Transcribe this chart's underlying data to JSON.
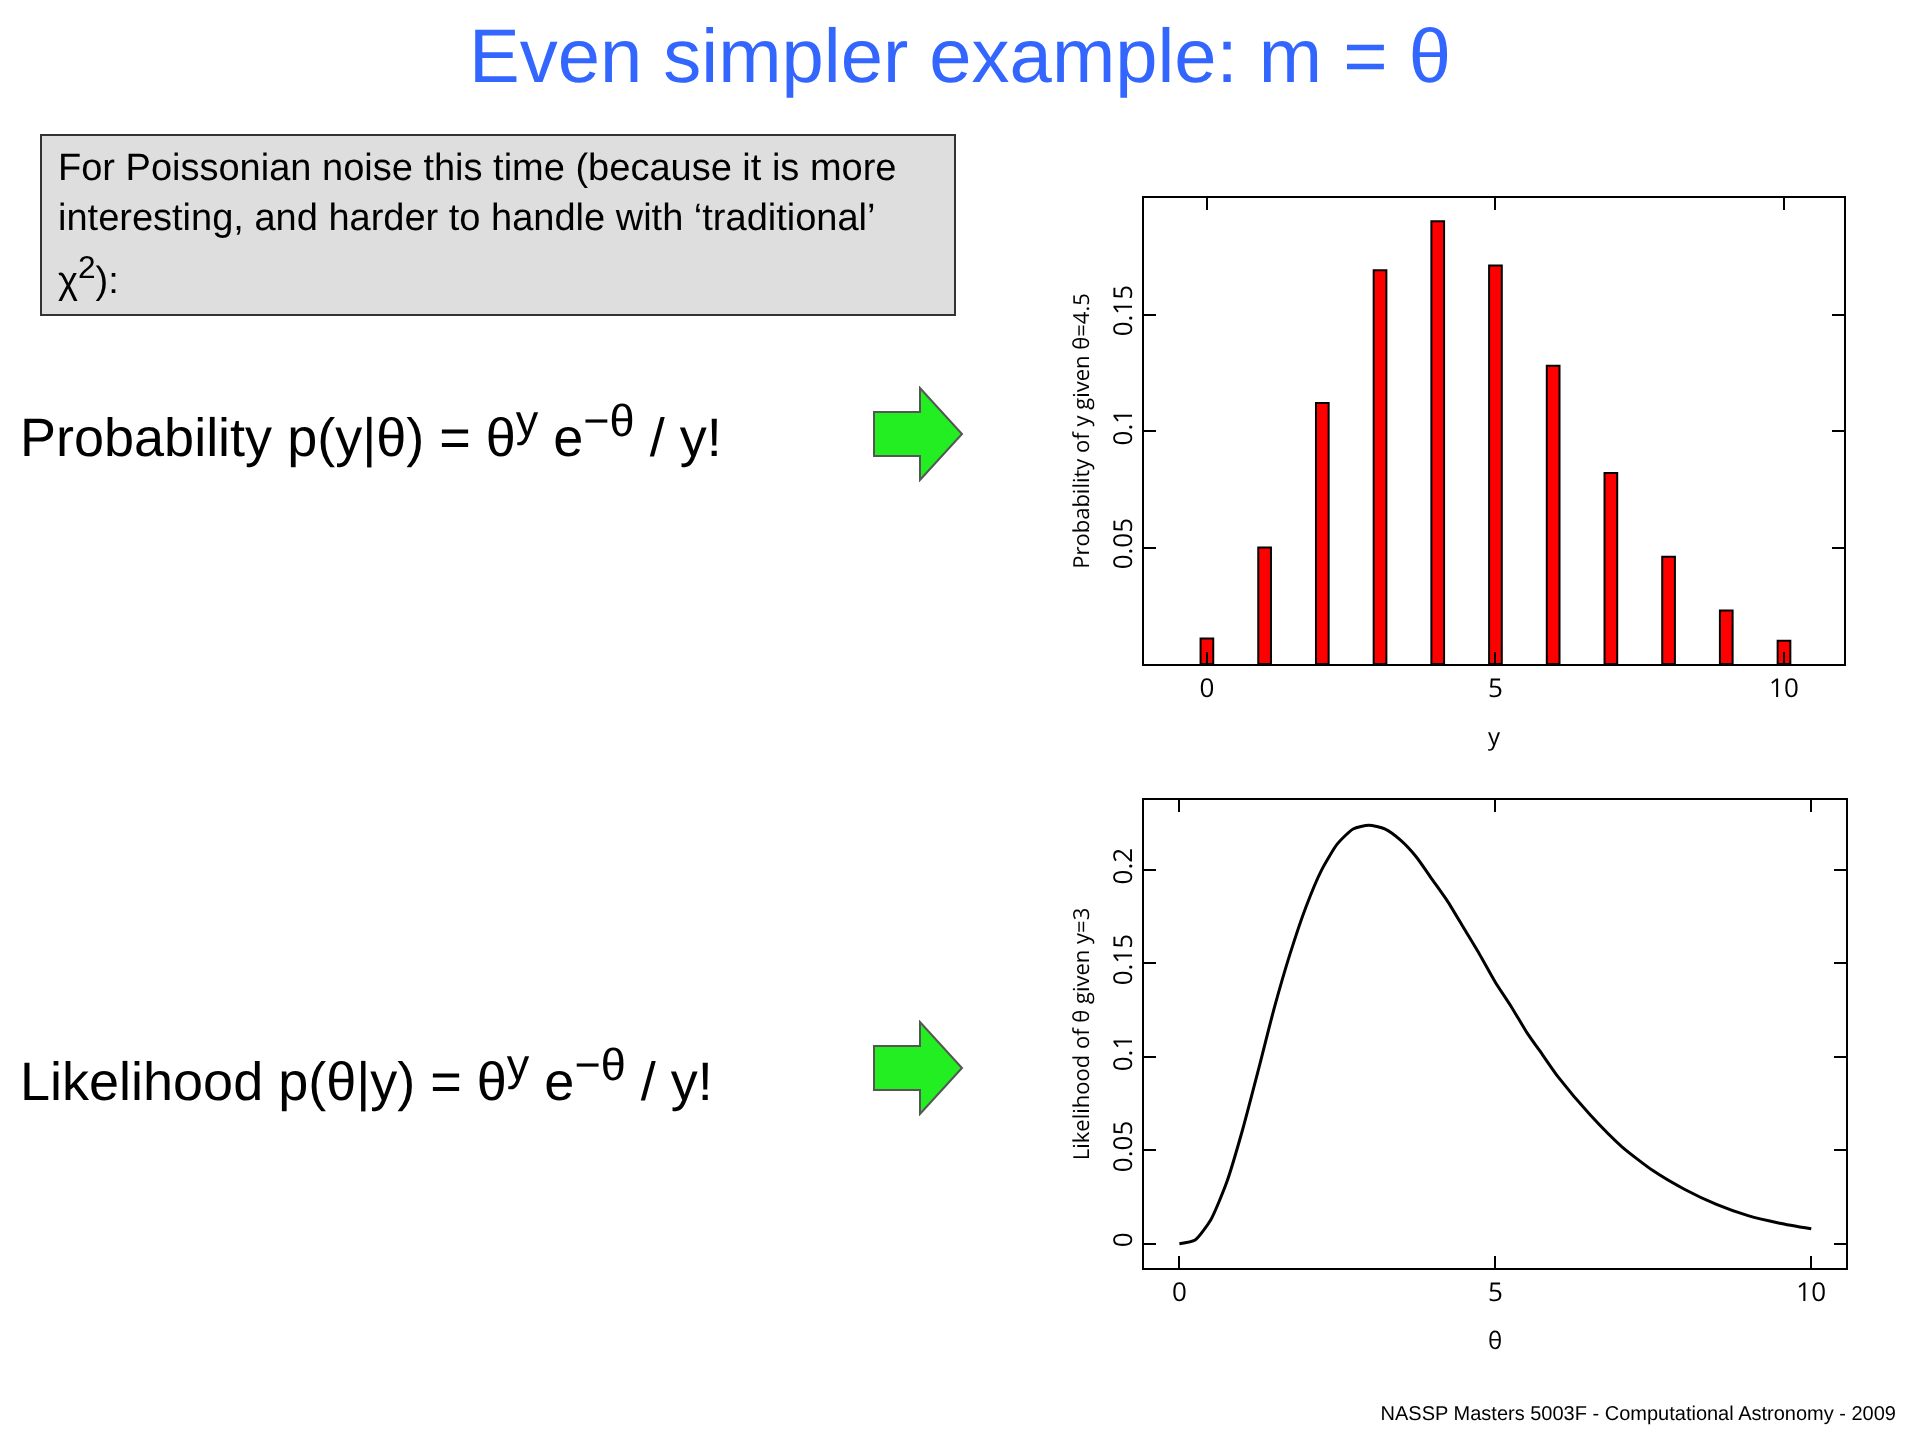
{
  "chart_data": [
    {
      "type": "bar",
      "title": "Even simpler example: m = θ",
      "xlabel": "y",
      "ylabel": "Probability of y given θ=4.5",
      "annotations": [
        "For Poissonian noise this time (because it is more interesting, and harder to handle with ‘traditional’ χ$^{2}$):",
        "Probability p(y|θ) = θ$^{y}$ e$^{−θ}$ / y!"
      ],
      "x": [
        0,
        1,
        2,
        3,
        4,
        5,
        6,
        7,
        8,
        9,
        10
      ],
      "series": [
        {
          "color": "#ff0000",
          "values": [
            0.011,
            0.05,
            0.112,
            0.169,
            0.19,
            0.171,
            0.128,
            0.082,
            0.046,
            0.023,
            0.01
          ]
        }
      ],
      "xlim": [
        -1.09,
        11.04
      ],
      "xticks": [
        0,
        5,
        10
      ],
      "ylim": [
        0,
        0.2
      ],
      "yticks": [
        {
          "value": 0,
          "label": null
        },
        0.05,
        0.1,
        0.15
      ],
      "grid": false
    },
    {
      "type": "line",
      "xlabel": "θ",
      "ylabel": "Likelihood of θ given y=3",
      "annotations": [
        "Likelihood p(θ|y) = θ$^{y}$ e$^{−θ}$ / y!",
        "NASSP Masters 5003F - Computational Astronomy - 2009"
      ],
      "x": [
        0,
        0.25,
        0.5,
        0.75,
        1,
        1.25,
        1.5,
        1.75,
        2,
        2.25,
        2.5,
        2.75,
        3,
        3.25,
        3.5,
        3.75,
        4,
        4.25,
        4.5,
        4.75,
        5,
        5.25,
        5.5,
        5.75,
        6,
        6.5,
        7,
        7.5,
        8,
        8.5,
        9,
        9.5,
        10
      ],
      "series": [
        {
          "color": "#000000",
          "values": [
            0,
            0.002,
            0.013,
            0.033,
            0.061,
            0.093,
            0.126,
            0.155,
            0.18,
            0.2,
            0.214,
            0.222,
            0.224,
            0.222,
            0.216,
            0.207,
            0.195,
            0.183,
            0.169,
            0.155,
            0.14,
            0.127,
            0.113,
            0.101,
            0.089,
            0.069,
            0.052,
            0.039,
            0.029,
            0.021,
            0.015,
            0.011,
            0.008
          ]
        }
      ],
      "xlim": [
        -0.56,
        10.55
      ],
      "xticks": [
        0,
        5,
        10
      ],
      "ylim": [
        -0.013,
        0.2375
      ],
      "yticks": [
        0,
        0.05,
        0.1,
        0.15,
        0.2
      ],
      "marker": "none",
      "line_style": "solid",
      "grid": false
    }
  ]
}
